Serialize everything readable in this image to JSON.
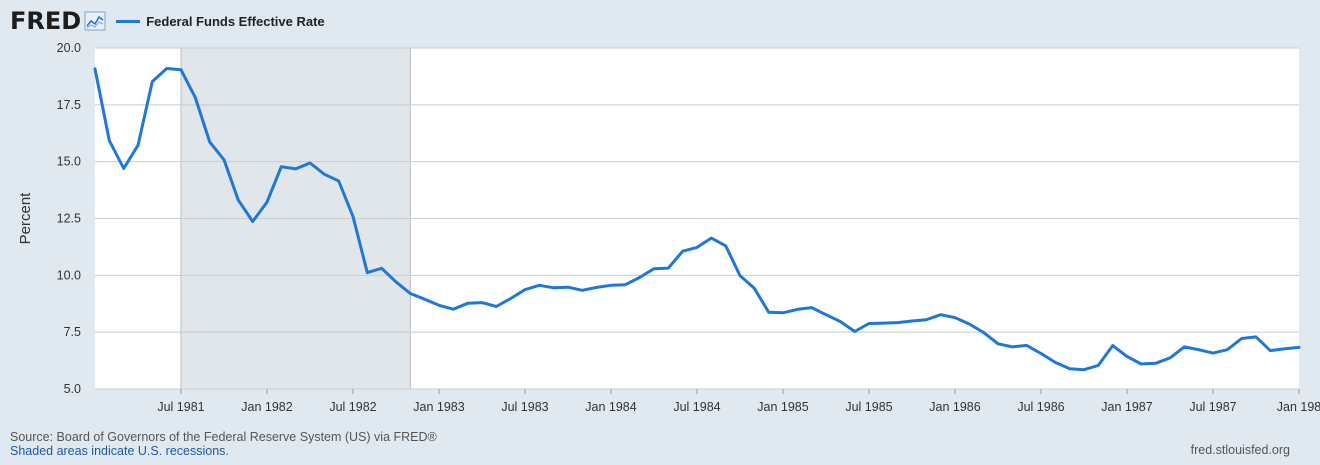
{
  "header": {
    "logo_text": "FRED",
    "logo_icon": "line-chart-icon"
  },
  "footer": {
    "source": "Source: Board of Governors of the Federal Reserve System (US) via FRED®",
    "recession_note": "Shaded areas indicate U.S. recessions.",
    "site": "fred.stlouisfed.org"
  },
  "colors": {
    "line": "#1f77d6",
    "plot_bg": "#ffffff",
    "page_bg": "#e1e9f0",
    "recession": "#e1e6ea",
    "grid": "#c8cdd2"
  },
  "chart_data": {
    "type": "line",
    "title": "",
    "xlabel": "",
    "ylabel": "Percent",
    "ylim": [
      5.0,
      20.0
    ],
    "yticks": [
      "5.0",
      "7.5",
      "10.0",
      "12.5",
      "15.0",
      "17.5",
      "20.0"
    ],
    "xlim": [
      "1981-01",
      "1988-01"
    ],
    "xticks": [
      {
        "date": "1981-07",
        "label": "Jul 1981"
      },
      {
        "date": "1982-01",
        "label": "Jan 1982"
      },
      {
        "date": "1982-07",
        "label": "Jul 1982"
      },
      {
        "date": "1983-01",
        "label": "Jan 1983"
      },
      {
        "date": "1983-07",
        "label": "Jul 1983"
      },
      {
        "date": "1984-01",
        "label": "Jan 1984"
      },
      {
        "date": "1984-07",
        "label": "Jul 1984"
      },
      {
        "date": "1985-01",
        "label": "Jan 1985"
      },
      {
        "date": "1985-07",
        "label": "Jul 1985"
      },
      {
        "date": "1986-01",
        "label": "Jan 1986"
      },
      {
        "date": "1986-07",
        "label": "Jul 1986"
      },
      {
        "date": "1987-01",
        "label": "Jan 1987"
      },
      {
        "date": "1987-07",
        "label": "Jul 1987"
      },
      {
        "date": "1988-01",
        "label": "Jan 198"
      }
    ],
    "grid": true,
    "legend": "top-left",
    "recessions": [
      {
        "start": "1981-07",
        "end": "1982-11"
      }
    ],
    "series": [
      {
        "name": "Federal Funds Effective Rate",
        "x": [
          "1981-01",
          "1981-02",
          "1981-03",
          "1981-04",
          "1981-05",
          "1981-06",
          "1981-07",
          "1981-08",
          "1981-09",
          "1981-10",
          "1981-11",
          "1981-12",
          "1982-01",
          "1982-02",
          "1982-03",
          "1982-04",
          "1982-05",
          "1982-06",
          "1982-07",
          "1982-08",
          "1982-09",
          "1982-10",
          "1982-11",
          "1982-12",
          "1983-01",
          "1983-02",
          "1983-03",
          "1983-04",
          "1983-05",
          "1983-06",
          "1983-07",
          "1983-08",
          "1983-09",
          "1983-10",
          "1983-11",
          "1983-12",
          "1984-01",
          "1984-02",
          "1984-03",
          "1984-04",
          "1984-05",
          "1984-06",
          "1984-07",
          "1984-08",
          "1984-09",
          "1984-10",
          "1984-11",
          "1984-12",
          "1985-01",
          "1985-02",
          "1985-03",
          "1985-04",
          "1985-05",
          "1985-06",
          "1985-07",
          "1985-08",
          "1985-09",
          "1985-10",
          "1985-11",
          "1985-12",
          "1986-01",
          "1986-02",
          "1986-03",
          "1986-04",
          "1986-05",
          "1986-06",
          "1986-07",
          "1986-08",
          "1986-09",
          "1986-10",
          "1986-11",
          "1986-12",
          "1987-01",
          "1987-02",
          "1987-03",
          "1987-04",
          "1987-05",
          "1987-06",
          "1987-07",
          "1987-08",
          "1987-09",
          "1987-10",
          "1987-11",
          "1987-12",
          "1988-01"
        ],
        "values": [
          19.08,
          15.93,
          14.7,
          15.72,
          18.52,
          19.1,
          19.04,
          17.82,
          15.87,
          15.08,
          13.31,
          12.37,
          13.22,
          14.78,
          14.68,
          14.94,
          14.45,
          14.15,
          12.59,
          10.12,
          10.31,
          9.71,
          9.2,
          8.95,
          8.68,
          8.51,
          8.77,
          8.8,
          8.63,
          8.98,
          9.37,
          9.56,
          9.45,
          9.48,
          9.34,
          9.47,
          9.56,
          9.59,
          9.91,
          10.29,
          10.32,
          11.06,
          11.23,
          11.64,
          11.3,
          9.99,
          9.43,
          8.38,
          8.35,
          8.5,
          8.58,
          8.27,
          7.97,
          7.53,
          7.88,
          7.9,
          7.92,
          7.99,
          8.05,
          8.27,
          8.14,
          7.86,
          7.48,
          6.99,
          6.85,
          6.92,
          6.56,
          6.17,
          5.89,
          5.85,
          6.04,
          6.91,
          6.43,
          6.1,
          6.13,
          6.37,
          6.85,
          6.73,
          6.58,
          6.73,
          7.22,
          7.29,
          6.69,
          6.77,
          6.83
        ]
      }
    ]
  }
}
